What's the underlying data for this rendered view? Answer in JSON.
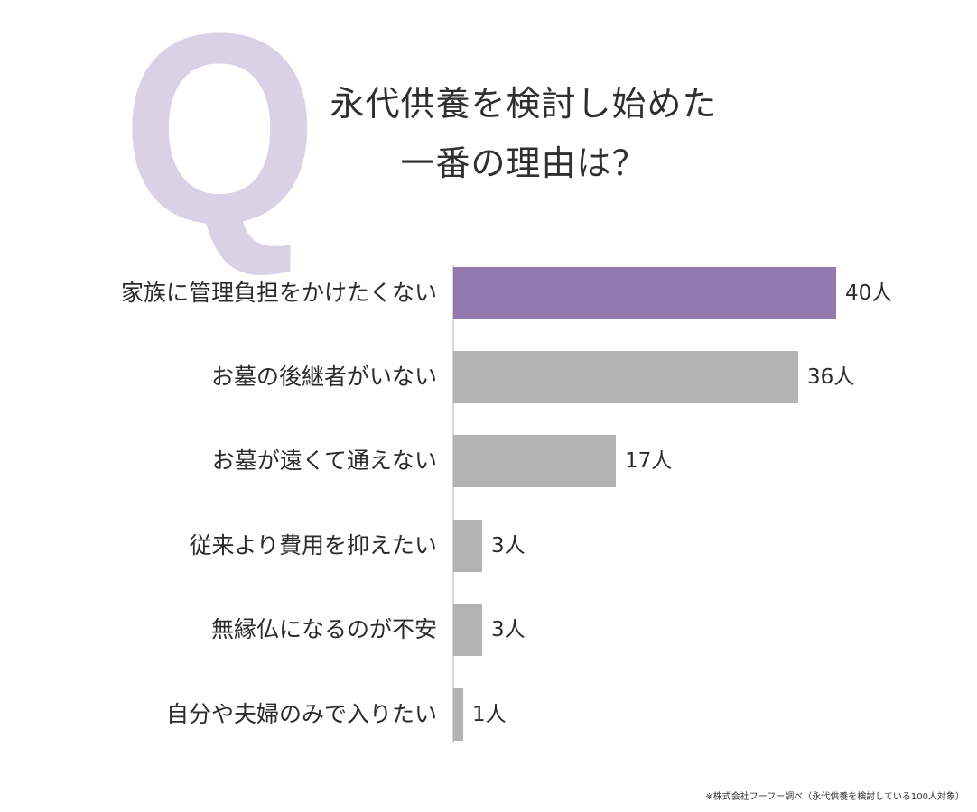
{
  "header": {
    "q_letter": "Q",
    "title_line1": "永代供養を検討し始めた",
    "title_line2": "一番の理由は？"
  },
  "colors": {
    "highlight": "#9379ad",
    "default_bar": "#b3b3b3",
    "q_letter": "#d9d2e6",
    "axis": "#d6d6d6",
    "text": "#2b2b2b"
  },
  "chart_data": {
    "type": "bar",
    "orientation": "horizontal",
    "title": "永代供養を検討し始めた一番の理由は？",
    "xlabel": "",
    "ylabel": "",
    "unit": "人",
    "categories": [
      "家族に管理負担をかけたくない",
      "お墓の後継者がいない",
      "お墓が遠くて通えない",
      "従来より費用を抑えたい",
      "無縁仏になるのが不安",
      "自分や夫婦のみで入りたい"
    ],
    "values": [
      40,
      36,
      17,
      3,
      3,
      1
    ],
    "value_labels": [
      "40人",
      "36人",
      "17人",
      "3人",
      "3人",
      "1人"
    ],
    "highlight_index": 0,
    "grid": false,
    "legend": "none",
    "source_note": "※株式会社フーフー調べ（永代供養を検討している100人対象）"
  },
  "footnote": "※株式会社フーフー調べ（永代供養を検討している100人対象）"
}
